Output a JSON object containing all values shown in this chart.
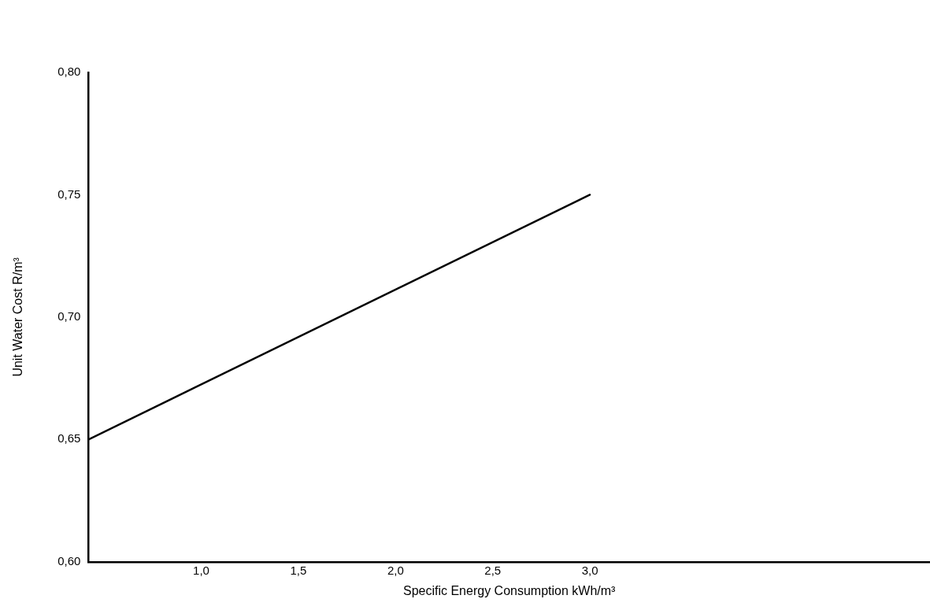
{
  "chart_data": {
    "type": "line",
    "xlabel": "Specific Energy Consumption kWh/m³",
    "ylabel": "Unit Water Cost R/m³",
    "x": [
      0.42,
      3.0
    ],
    "series": [
      {
        "color": "#000000",
        "values": [
          0.65,
          0.75
        ]
      }
    ],
    "xlim": [
      0.42,
      4.75
    ],
    "xticks": [
      {
        "value": 1,
        "label": "1,0"
      },
      {
        "value": 1.5,
        "label": "1,5"
      },
      {
        "value": 2,
        "label": "2,0"
      },
      {
        "value": 2.5,
        "label": "2,5"
      },
      {
        "value": 3,
        "label": "3,0"
      }
    ],
    "ylim": [
      0.6,
      0.8
    ],
    "yticks": [
      {
        "value": 0.6,
        "label": "0,60"
      },
      {
        "value": 0.65,
        "label": "0,65"
      },
      {
        "value": 0.7,
        "label": "0,70"
      },
      {
        "value": 0.75,
        "label": "0,75"
      },
      {
        "value": 0.8,
        "label": "0,80"
      }
    ],
    "grid": false,
    "legend": false,
    "marker": "none",
    "line_style": "solid"
  }
}
